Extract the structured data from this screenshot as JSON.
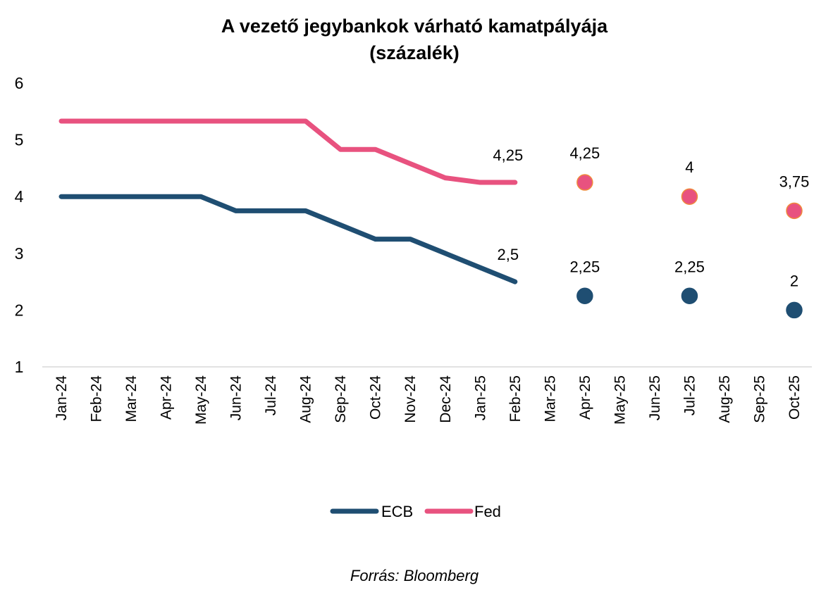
{
  "chart_data": {
    "type": "line",
    "title": "A vezető jegybankok várható kamatpályája",
    "subtitle": "(százalék)",
    "categories": [
      "Jan-24",
      "Feb-24",
      "Mar-24",
      "Apr-24",
      "May-24",
      "Jun-24",
      "Jul-24",
      "Aug-24",
      "Sep-24",
      "Oct-24",
      "Nov-24",
      "Dec-24",
      "Jan-25",
      "Feb-25",
      "Mar-25",
      "Apr-25",
      "May-25",
      "Jun-25",
      "Jul-25",
      "Aug-25",
      "Sep-25",
      "Oct-25"
    ],
    "ylim": [
      1,
      6
    ],
    "yticks": [
      "1",
      "2",
      "3",
      "4",
      "5",
      "6"
    ],
    "grid": false,
    "legend_position": "bottom",
    "series": [
      {
        "name": "ECB",
        "color": "#1f4e72",
        "line": [
          4,
          4,
          4,
          4,
          4,
          3.75,
          3.75,
          3.75,
          3.5,
          3.25,
          3.25,
          3,
          2.75,
          2.5,
          null,
          null,
          null,
          null,
          null,
          null,
          null,
          null
        ],
        "line_label": {
          "index": 13,
          "text": "2,5"
        },
        "points": [
          {
            "index": 15,
            "value": 2.25,
            "label": "2,25"
          },
          {
            "index": 18,
            "value": 2.25,
            "label": "2,25"
          },
          {
            "index": 21,
            "value": 2,
            "label": "2"
          }
        ]
      },
      {
        "name": "Fed",
        "color": "#e8527f",
        "marker_edge": "#f08a3c",
        "line": [
          5.33,
          5.33,
          5.33,
          5.33,
          5.33,
          5.33,
          5.33,
          5.33,
          4.83,
          4.83,
          4.58,
          4.33,
          4.25,
          4.25,
          null,
          null,
          null,
          null,
          null,
          null,
          null,
          null
        ],
        "line_label": {
          "index": 13,
          "text": "4,25"
        },
        "points": [
          {
            "index": 15,
            "value": 4.25,
            "label": "4,25"
          },
          {
            "index": 18,
            "value": 4,
            "label": "4"
          },
          {
            "index": 21,
            "value": 3.75,
            "label": "3,75"
          }
        ]
      }
    ],
    "source": "Forrás: Bloomberg"
  }
}
